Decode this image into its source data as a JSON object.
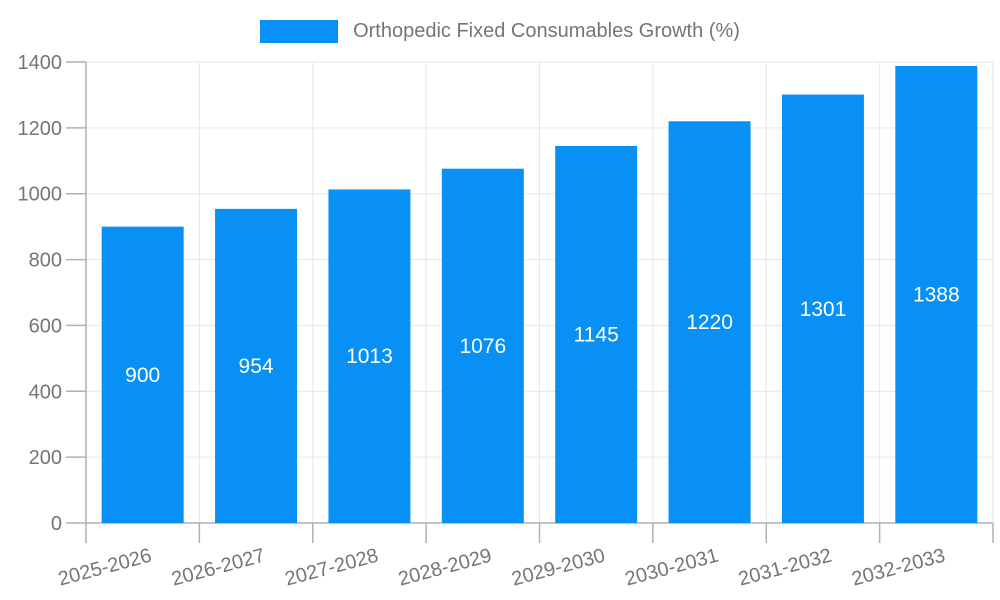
{
  "legend": {
    "label": "Orthopedic Fixed Consumables Growth (%)"
  },
  "chart_data": {
    "type": "bar",
    "title": "Orthopedic Fixed Consumables Growth (%)",
    "categories": [
      "2025-2026",
      "2026-2027",
      "2027-2028",
      "2028-2029",
      "2029-2030",
      "2030-2031",
      "2031-2032",
      "2032-2033"
    ],
    "series": [
      {
        "name": "Orthopedic Fixed Consumables Growth (%)",
        "values": [
          900,
          954,
          1013,
          1076,
          1145,
          1220,
          1301,
          1388
        ]
      }
    ],
    "xlabel": "",
    "ylabel": "",
    "ylim": [
      0,
      1400
    ],
    "ytick_step": 200,
    "yticks": [
      0,
      200,
      400,
      600,
      800,
      1000,
      1200,
      1400
    ],
    "grid": true,
    "legend_position": "top",
    "value_labels": "inside-center",
    "x_label_rotation_deg": -15,
    "colors": {
      "bar": "#0890f5",
      "value_label": "#ffffff",
      "axis_text": "#757575",
      "grid_line": "#e6e6e6",
      "axis_line": "#b1b1b1"
    }
  }
}
